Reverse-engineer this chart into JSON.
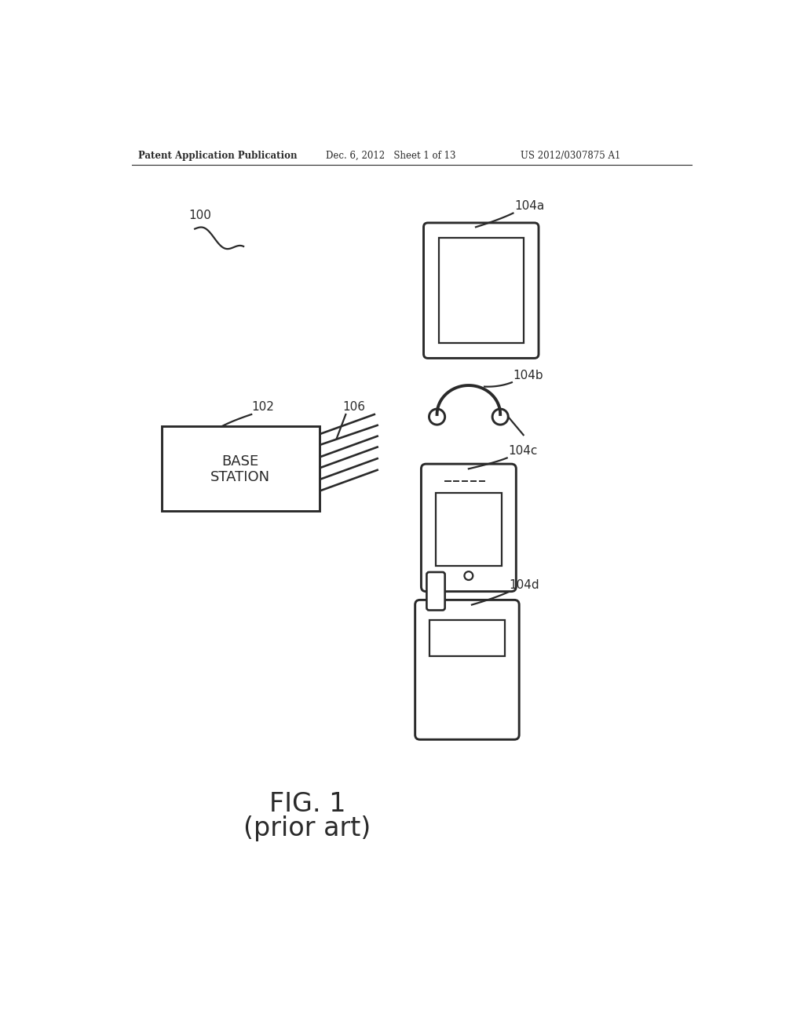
{
  "bg_color": "#ffffff",
  "text_color": "#1a1a1a",
  "header_left": "Patent Application Publication",
  "header_mid": "Dec. 6, 2012   Sheet 1 of 13",
  "header_right": "US 2012/0307875 A1",
  "fig_label": "FIG. 1",
  "fig_sublabel": "(prior art)",
  "label_100": "100",
  "label_102": "102",
  "label_106": "106",
  "label_104a": "104a",
  "label_104b": "104b",
  "label_104c": "104c",
  "label_104d": "104d",
  "base_station_text_1": "BASE",
  "base_station_text_2": "STATION",
  "line_color": "#2a2a2a",
  "line_width": 1.6
}
